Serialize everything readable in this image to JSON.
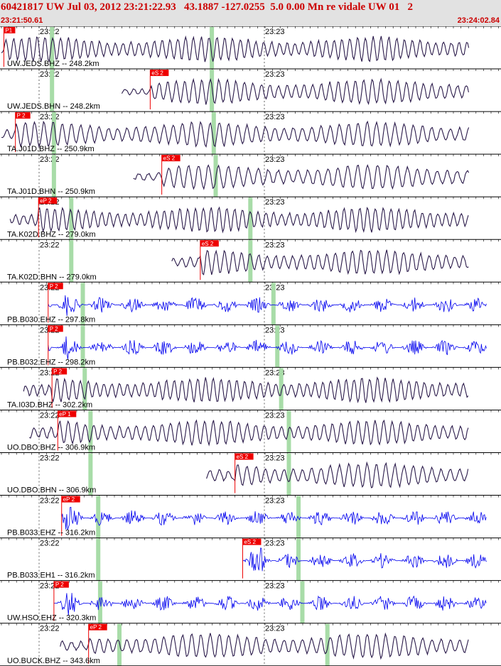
{
  "header": {
    "title": "60421817 UW Jul 03, 2012 23:21:22.93   43.1887 -127.0255  5.0 0.00 Mn re vidale UW 01   2",
    "start_time": "23:21:50.61",
    "end_time": "23:24:02.84"
  },
  "colors": {
    "header_bg": "#e2e2e2",
    "header_text": "#cc0000",
    "broadband_trace": "#2a1a4a",
    "shortperiod_trace": "#0000ee",
    "pick_flag": "#ee0000",
    "predicted_arrival": "#a8dca8",
    "gridline": "#000000"
  },
  "time_ticks": [
    "23:22",
    "23:23"
  ],
  "channels": [
    {
      "label": "UW.JEDS.BHZ -- 248.2km",
      "kind": "bb",
      "pick": "P1",
      "pick_sec": 1.0,
      "s_pick": null,
      "s_sec": null,
      "green_sec": [
        13.5,
        55.0
      ]
    },
    {
      "label": "UW.JEDS.BHN -- 248.2km",
      "kind": "bb",
      "pick": "eS 2",
      "pick_sec": 39.0,
      "s_pick": null,
      "s_sec": null,
      "green_sec": [
        13.5,
        55.0
      ]
    },
    {
      "label": "TA.J01D.BHZ -- 250.9km",
      "kind": "bb",
      "pick": "P 2",
      "pick_sec": 4.0,
      "s_pick": null,
      "s_sec": null,
      "green_sec": [
        14.0,
        55.5
      ]
    },
    {
      "label": "TA.J01D.BHN -- 250.9km",
      "kind": "bb",
      "pick": "eS 2",
      "pick_sec": 42.0,
      "s_pick": null,
      "s_sec": null,
      "green_sec": [
        14.0,
        56.0
      ]
    },
    {
      "label": "TA.K02D.BHZ -- 279.0km",
      "kind": "bb",
      "pick": "eP 2",
      "pick_sec": 10.0,
      "s_pick": null,
      "s_sec": null,
      "green_sec": [
        18.5,
        65.0
      ]
    },
    {
      "label": "TA.K02D.BHN -- 279.0km",
      "kind": "bb",
      "pick": "eS 2",
      "pick_sec": 52.0,
      "s_pick": null,
      "s_sec": null,
      "green_sec": [
        18.5,
        65.0
      ]
    },
    {
      "label": "PB.B030.EHZ -- 297.8km",
      "kind": "sp",
      "pick": "P 2",
      "pick_sec": 12.5,
      "s_pick": null,
      "s_sec": null,
      "green_sec": [
        21.5,
        71.0
      ]
    },
    {
      "label": "PB.B032.EHZ -- 298.2km",
      "kind": "sp",
      "pick": "P 2",
      "pick_sec": 12.5,
      "s_pick": null,
      "s_sec": null,
      "green_sec": [
        21.5,
        72.0
      ]
    },
    {
      "label": "TA.I03D.BHZ -- 302.2km",
      "kind": "bb",
      "pick": "P 2",
      "pick_sec": 13.5,
      "s_pick": null,
      "s_sec": null,
      "green_sec": [
        22.0,
        73.0
      ]
    },
    {
      "label": "UO.DBO.BHZ -- 306.9km",
      "kind": "bb",
      "pick": "eP 1",
      "pick_sec": 15.0,
      "s_pick": null,
      "s_sec": null,
      "green_sec": [
        23.5,
        75.0
      ]
    },
    {
      "label": "UO.DBO.BHN -- 306.9km",
      "kind": "bb",
      "pick": "eS 2",
      "pick_sec": 61.0,
      "s_pick": null,
      "s_sec": null,
      "green_sec": [
        23.5,
        75.0
      ]
    },
    {
      "label": "PB.B033.EHZ -- 316.2km",
      "kind": "sp",
      "pick": "eP 2",
      "pick_sec": 16.0,
      "s_pick": null,
      "s_sec": null,
      "green_sec": [
        25.5,
        77.5
      ]
    },
    {
      "label": "PB.B033.EH1 -- 316.2km",
      "kind": "sp",
      "pick": "eS 2",
      "pick_sec": 63.0,
      "s_pick": null,
      "s_sec": null,
      "green_sec": [
        25.5,
        77.5
      ]
    },
    {
      "label": "UW.HSO.EHZ -- 320.3km",
      "kind": "sp",
      "pick": "P 2",
      "pick_sec": 14.0,
      "s_pick": null,
      "s_sec": null,
      "green_sec": [
        26.0,
        78.5
      ]
    },
    {
      "label": "UO.BUCK.BHZ -- 343.6km",
      "kind": "bb",
      "pick": "eP 2",
      "pick_sec": 23.0,
      "s_pick": null,
      "s_sec": null,
      "green_sec": [
        31.0,
        85.0
      ]
    }
  ]
}
